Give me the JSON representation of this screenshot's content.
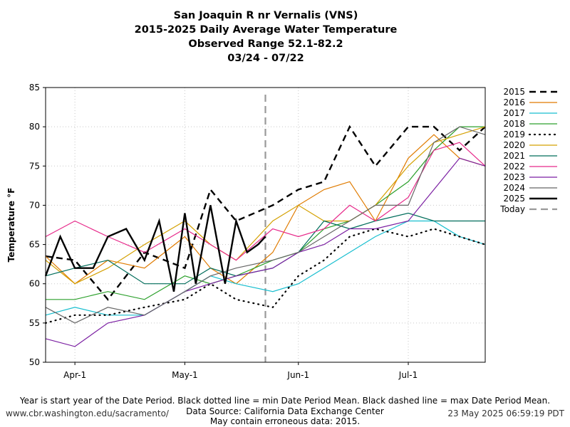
{
  "titles": {
    "line1": "San Joaquin R nr Vernalis (VNS)",
    "line2": "2015-2025 Daily Average Water Temperature",
    "line3": "Observed Range 52.1-82.2",
    "line4": "03/24 - 07/22"
  },
  "footer": {
    "note": "Year is start year of the Date Period. Black dotted line = min Date Period Mean. Black dashed line = max Date Period Mean.",
    "source": "Data Source: California Data Exchange Center",
    "warning": "May contain erroneous data: 2015.",
    "url": "www.cbr.washington.edu/sacramento/",
    "timestamp": "23 May 2025 06:59:19 PDT"
  },
  "chart_data": {
    "type": "line",
    "ylabel": "Temperature °F",
    "ylim": [
      50,
      85
    ],
    "yticks": [
      50,
      55,
      60,
      65,
      70,
      75,
      80,
      85
    ],
    "xlim": [
      "03/24",
      "07/22"
    ],
    "xticks": [
      {
        "label": "Apr-1",
        "date": "04/01"
      },
      {
        "label": "May-1",
        "date": "05/01"
      },
      {
        "label": "Jun-1",
        "date": "06/01"
      },
      {
        "label": "Jul-1",
        "date": "07/01"
      }
    ],
    "grid": true,
    "legend_position": "right",
    "today": {
      "label": "Today",
      "date": "05/23",
      "color": "#999999"
    },
    "series": [
      {
        "name": "2015",
        "color": "#000000",
        "style": "dashed",
        "x": [
          "03/24",
          "04/01",
          "04/10",
          "04/20",
          "05/01",
          "05/08",
          "05/15",
          "05/25",
          "06/01",
          "06/08",
          "06/15",
          "06/22",
          "07/01",
          "07/08",
          "07/15",
          "07/22"
        ],
        "values": [
          63.5,
          63,
          58,
          64,
          62,
          72,
          68,
          70,
          72,
          73,
          80,
          75,
          80,
          80,
          77,
          80
        ]
      },
      {
        "name": "2016",
        "color": "#e07b00",
        "style": "solid",
        "x": [
          "03/24",
          "04/01",
          "04/10",
          "04/20",
          "05/01",
          "05/08",
          "05/15",
          "05/25",
          "06/01",
          "06/08",
          "06/15",
          "06/22",
          "07/01",
          "07/08",
          "07/15",
          "07/22"
        ],
        "values": [
          63.5,
          60,
          63,
          62,
          66,
          62,
          60,
          64,
          70,
          72,
          73,
          68,
          76,
          79,
          76,
          75
        ]
      },
      {
        "name": "2017",
        "color": "#17becf",
        "style": "solid",
        "x": [
          "03/24",
          "04/01",
          "04/10",
          "04/20",
          "05/01",
          "05/08",
          "05/15",
          "05/25",
          "06/01",
          "06/08",
          "06/15",
          "06/22",
          "07/01",
          "07/08",
          "07/15",
          "07/22"
        ],
        "values": [
          56,
          57,
          56,
          56,
          59,
          61,
          60,
          59,
          60,
          62,
          64,
          66,
          68,
          68,
          66,
          65
        ]
      },
      {
        "name": "2018",
        "color": "#2ca02c",
        "style": "solid",
        "x": [
          "03/24",
          "04/01",
          "04/10",
          "04/20",
          "05/01",
          "05/08",
          "05/15",
          "05/25",
          "06/01",
          "06/08",
          "06/15",
          "06/22",
          "07/01",
          "07/08",
          "07/15",
          "07/22"
        ],
        "values": [
          58,
          58,
          59,
          58,
          61,
          60,
          61,
          63,
          64,
          67,
          68,
          70,
          73,
          77,
          80,
          80
        ]
      },
      {
        "name": "2019",
        "color": "#000000",
        "style": "dotted",
        "x": [
          "03/24",
          "04/01",
          "04/10",
          "04/20",
          "05/01",
          "05/08",
          "05/15",
          "05/25",
          "06/01",
          "06/08",
          "06/15",
          "06/22",
          "07/01",
          "07/08",
          "07/15",
          "07/22"
        ],
        "values": [
          55,
          56,
          56,
          57,
          58,
          60,
          58,
          57,
          61,
          63,
          66,
          67,
          66,
          67,
          66,
          65
        ]
      },
      {
        "name": "2020",
        "color": "#d4a000",
        "style": "solid",
        "x": [
          "03/24",
          "04/01",
          "04/10",
          "04/20",
          "05/01",
          "05/08",
          "05/15",
          "05/25",
          "06/01",
          "06/08",
          "06/15",
          "06/22",
          "07/01",
          "07/08",
          "07/15",
          "07/22"
        ],
        "values": [
          63,
          60,
          62,
          65,
          68,
          65,
          63,
          68,
          70,
          68,
          68,
          70,
          75,
          78,
          79,
          80
        ]
      },
      {
        "name": "2021",
        "color": "#006d5b",
        "style": "solid",
        "x": [
          "03/24",
          "04/01",
          "04/10",
          "04/20",
          "05/01",
          "05/08",
          "05/15",
          "05/25",
          "06/01",
          "06/08",
          "06/15",
          "06/22",
          "07/01",
          "07/08",
          "07/15",
          "07/22"
        ],
        "values": [
          61,
          62,
          63,
          60,
          60,
          62,
          61,
          62,
          64,
          68,
          67,
          68,
          69,
          68,
          68,
          68
        ]
      },
      {
        "name": "2022",
        "color": "#e7298a",
        "style": "solid",
        "x": [
          "03/24",
          "04/01",
          "04/10",
          "04/20",
          "05/01",
          "05/08",
          "05/15",
          "05/25",
          "06/01",
          "06/08",
          "06/15",
          "06/22",
          "07/01",
          "07/08",
          "07/15",
          "07/22"
        ],
        "values": [
          66,
          68,
          66,
          64,
          67,
          65,
          63,
          67,
          66,
          67,
          70,
          68,
          71,
          77,
          78,
          75
        ]
      },
      {
        "name": "2023",
        "color": "#7b1fa2",
        "style": "solid",
        "x": [
          "03/24",
          "04/01",
          "04/10",
          "04/20",
          "05/01",
          "05/08",
          "05/15",
          "05/25",
          "06/01",
          "06/08",
          "06/15",
          "06/22",
          "07/01",
          "07/08",
          "07/15",
          "07/22"
        ],
        "values": [
          53,
          52,
          55,
          56,
          59,
          60,
          61,
          62,
          64,
          65,
          67,
          67,
          68,
          72,
          76,
          75
        ]
      },
      {
        "name": "2024",
        "color": "#666666",
        "style": "solid",
        "x": [
          "03/24",
          "04/01",
          "04/10",
          "04/20",
          "05/01",
          "05/08",
          "05/15",
          "05/25",
          "06/01",
          "06/08",
          "06/15",
          "06/22",
          "07/01",
          "07/08",
          "07/15",
          "07/22"
        ],
        "values": [
          57,
          55,
          57,
          56,
          59,
          61,
          62,
          63,
          64,
          66,
          68,
          70,
          70,
          78,
          80,
          79
        ]
      },
      {
        "name": "2025",
        "color": "#000000",
        "style": "thick",
        "x": [
          "03/24",
          "03/28",
          "04/01",
          "04/06",
          "04/10",
          "04/15",
          "04/20",
          "04/24",
          "04/28",
          "05/01",
          "05/04",
          "05/08",
          "05/12",
          "05/15",
          "05/18",
          "05/21",
          "05/23"
        ],
        "values": [
          61,
          66,
          62,
          62,
          66,
          67,
          63,
          68,
          59,
          69,
          60,
          70,
          60,
          68,
          64,
          65,
          66
        ]
      }
    ]
  }
}
